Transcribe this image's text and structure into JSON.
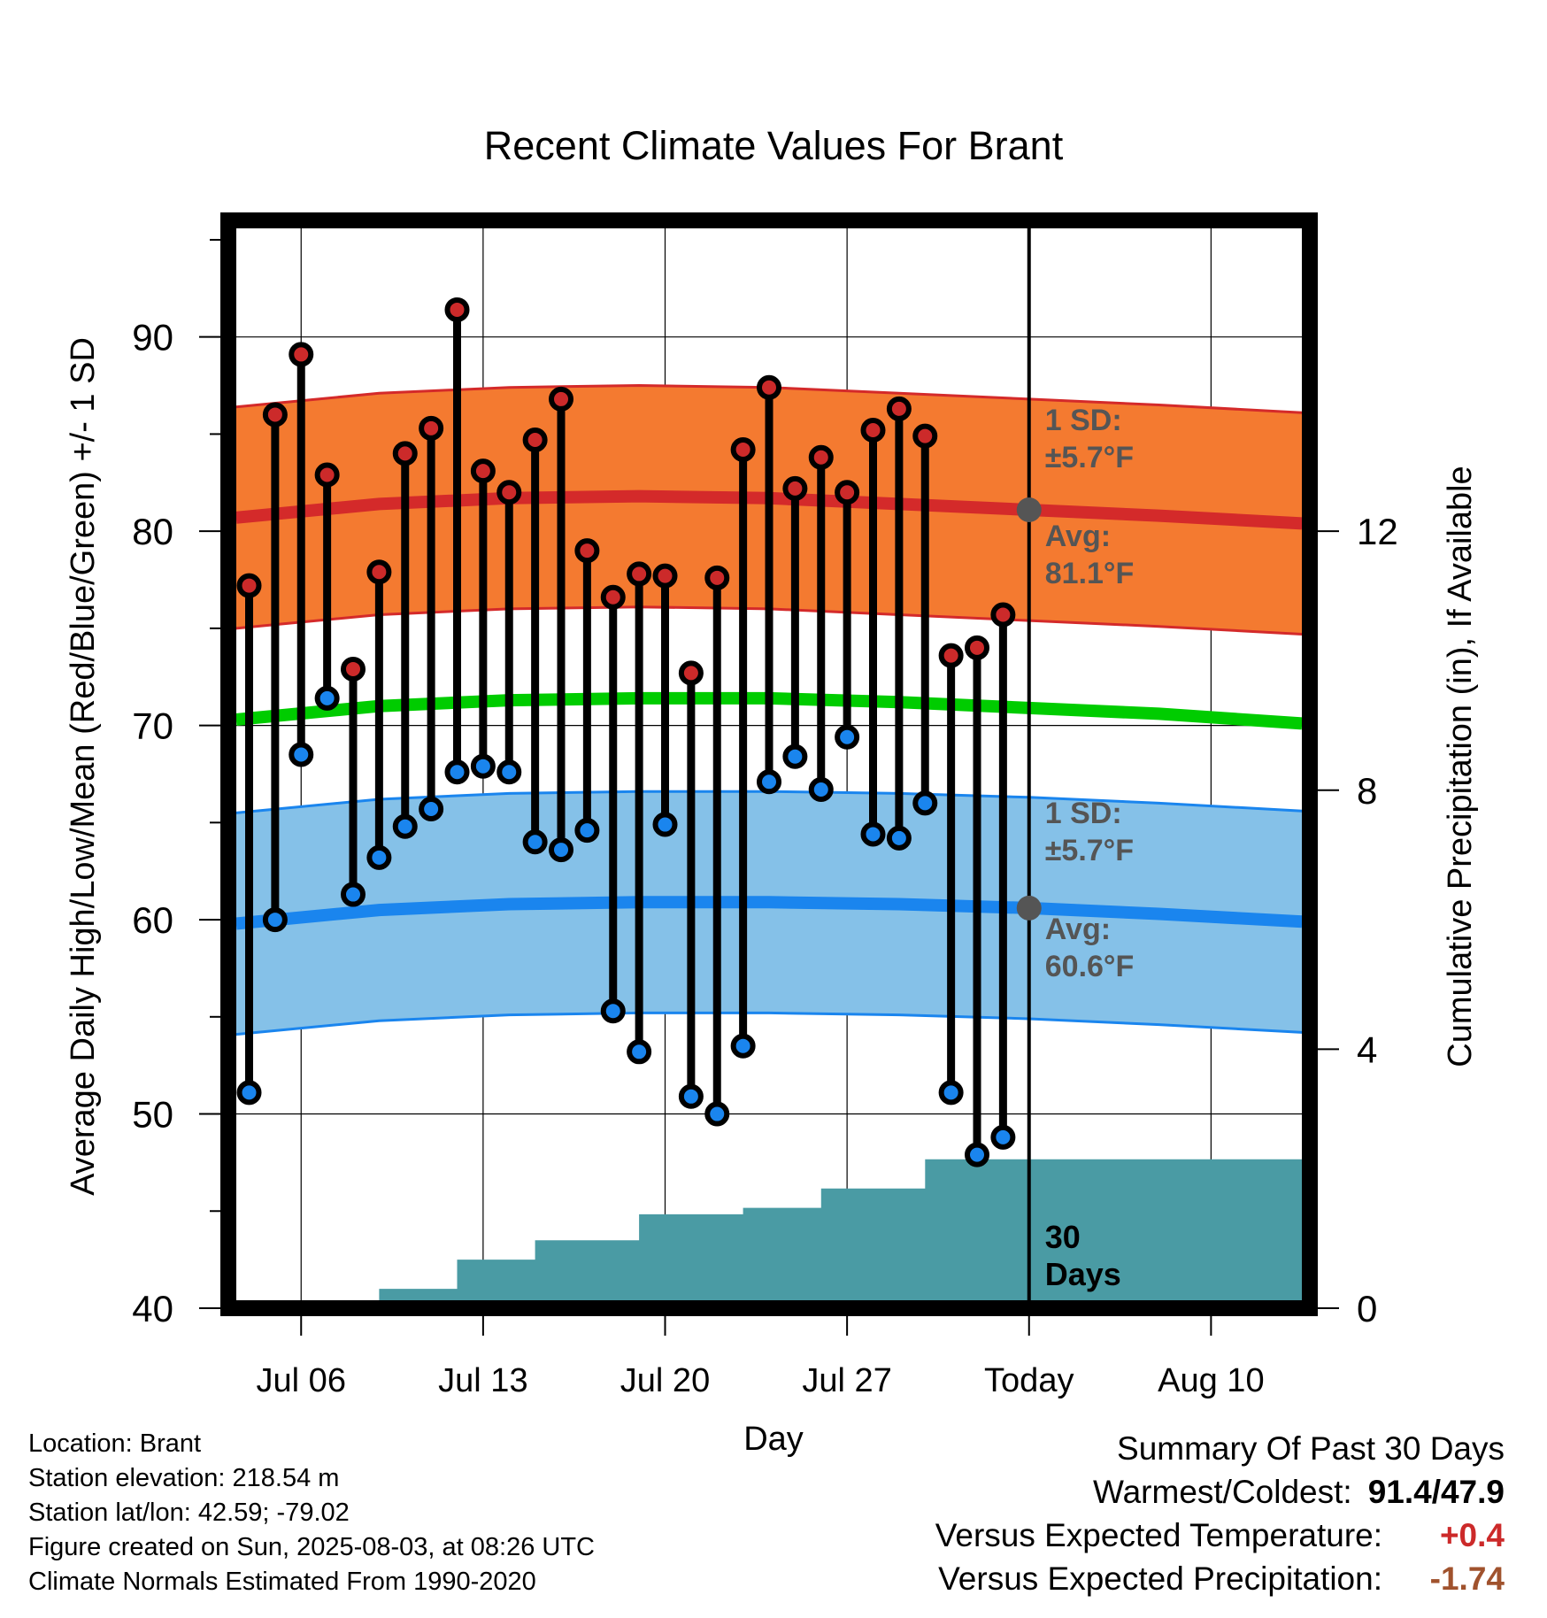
{
  "chart_data": {
    "type": "line",
    "title": "Recent Climate Values For Brant",
    "xlabel": "Day",
    "ylabel": "Average Daily High/Low/Mean (Red/Blue/Green) +/- 1 SD",
    "y2label": "Cumulative Precipitation (in), If Available",
    "ylim": [
      40,
      96
    ],
    "y2lim": [
      0,
      16.8
    ],
    "xlim": [
      -2.8,
      38.8
    ],
    "x_ticks": [
      {
        "pos": 0,
        "label": "Jul 06"
      },
      {
        "pos": 7,
        "label": "Jul 13"
      },
      {
        "pos": 14,
        "label": "Jul 20"
      },
      {
        "pos": 21,
        "label": "Jul 27"
      },
      {
        "pos": 28,
        "label": "Today"
      },
      {
        "pos": 35,
        "label": "Aug 10"
      }
    ],
    "y_ticks": [
      40,
      50,
      60,
      70,
      80,
      90
    ],
    "y2_ticks": [
      0,
      4,
      8,
      12
    ],
    "grid": true,
    "colors": {
      "high_band": "#f47a30",
      "high_line": "#d42a2a",
      "low_band": "#85c1e8",
      "low_line": "#1a85ee",
      "mean_line": "#00cc00",
      "precip": "#4a9ba4",
      "annotation": "#555555",
      "high_marker": "#cc2a2a",
      "low_marker": "#1a85ee"
    },
    "daily": {
      "start_offset": -2,
      "highs": [
        77.2,
        86.0,
        89.1,
        82.9,
        72.9,
        77.9,
        84.0,
        85.3,
        91.4,
        83.1,
        82.0,
        84.7,
        86.8,
        79.0,
        76.6,
        77.8,
        77.7,
        72.7,
        77.6,
        84.2,
        87.4,
        82.2,
        83.8,
        82.0,
        85.2,
        86.3,
        84.9,
        73.6,
        74.0,
        75.7
      ],
      "lows": [
        51.1,
        60.0,
        68.5,
        71.4,
        61.3,
        63.2,
        64.8,
        65.7,
        67.6,
        67.9,
        67.6,
        64.0,
        63.6,
        64.6,
        55.3,
        53.2,
        64.9,
        50.9,
        50.0,
        53.5,
        67.1,
        68.4,
        66.7,
        69.4,
        64.4,
        64.2,
        66.0,
        51.1,
        47.9,
        48.8
      ]
    },
    "normals": {
      "x": [
        -2.5,
        3,
        8,
        13,
        18,
        23,
        28,
        33,
        38.5
      ],
      "high_mean": [
        80.7,
        81.4,
        81.7,
        81.8,
        81.7,
        81.4,
        81.1,
        80.8,
        80.4
      ],
      "low_mean": [
        59.8,
        60.5,
        60.8,
        60.9,
        60.9,
        60.8,
        60.6,
        60.3,
        59.9
      ],
      "daily_mean": [
        70.3,
        71.0,
        71.3,
        71.4,
        71.4,
        71.2,
        70.9,
        70.6,
        70.1
      ],
      "sd": 5.7
    },
    "precipitation": {
      "x": [
        -2.5,
        2,
        3,
        4,
        5,
        6,
        7,
        8,
        9,
        10,
        11,
        12,
        13,
        14,
        15,
        16,
        17,
        18,
        19,
        20,
        21,
        22,
        23,
        24,
        25,
        26,
        27,
        28,
        38.5
      ],
      "value": [
        0,
        0,
        0.3,
        0.3,
        0.3,
        0.75,
        0.75,
        0.75,
        1.05,
        1.05,
        1.05,
        1.05,
        1.45,
        1.45,
        1.45,
        1.45,
        1.55,
        1.55,
        1.55,
        1.85,
        1.85,
        1.85,
        1.85,
        2.3,
        2.3,
        2.3,
        2.3,
        2.3,
        2.3
      ]
    },
    "annotations": {
      "high_sd_label": "1 SD:",
      "high_sd_value": "±5.7°F",
      "high_avg_label": "Avg:",
      "high_avg_value": "81.1°F",
      "low_sd_label": "1 SD:",
      "low_sd_value": "±5.7°F",
      "low_avg_label": "Avg:",
      "low_avg_value": "60.6°F",
      "days_label_1": "30",
      "days_label_2": "Days"
    }
  },
  "info": {
    "location": "Location: Brant",
    "elevation": "Station elevation: 218.54 m",
    "latlon": "Station lat/lon: 42.59; -79.02",
    "created": "Figure created on Sun, 2025-08-03, at 08:26 UTC",
    "normals": "Climate Normals Estimated From 1990-2020"
  },
  "summary": {
    "title": "Summary Of Past 30 Days",
    "warmest_label": "Warmest/Coldest:",
    "warmest_value": "91.4/47.9",
    "temp_label": "Versus Expected Temperature:",
    "temp_value": "+0.4",
    "temp_color": "#cc2a2a",
    "precip_label": "Versus Expected Precipitation:",
    "precip_value": "-1.74",
    "precip_color": "#a0522d"
  }
}
